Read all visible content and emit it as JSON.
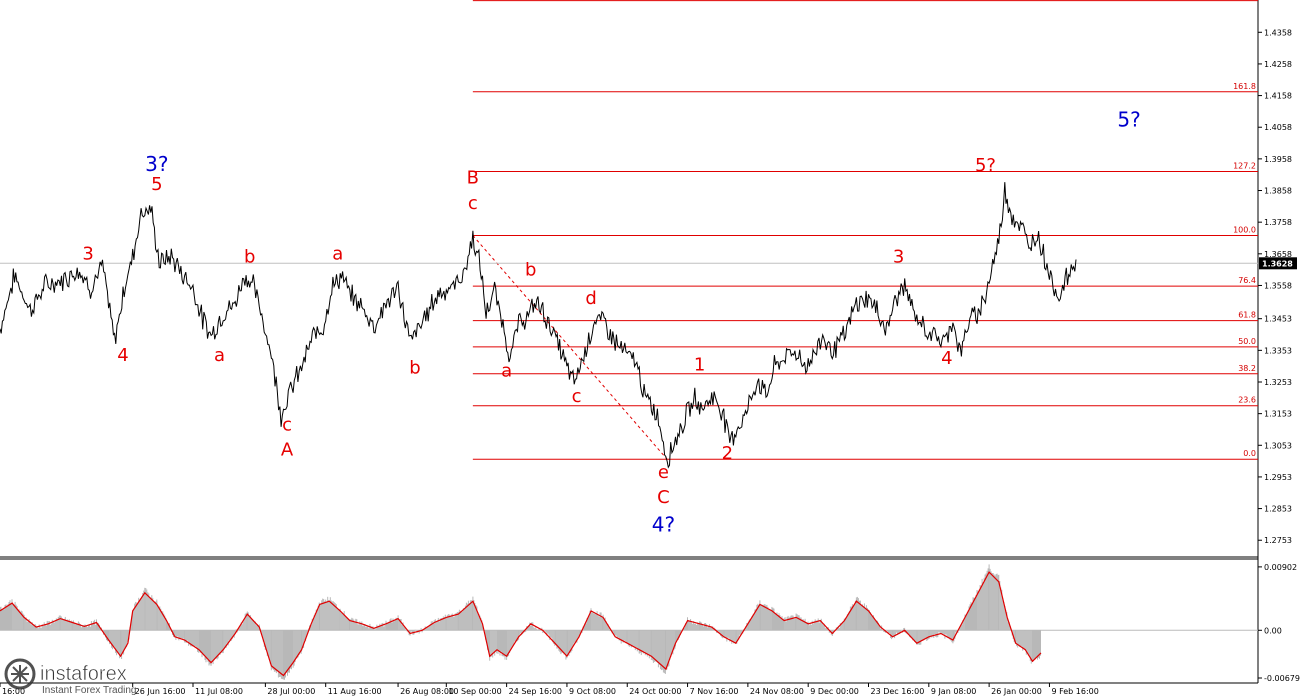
{
  "chart_data": [
    {
      "type": "line",
      "name": "price-panel",
      "symbol_last_price": "1.3628",
      "ylim": [
        1.27,
        1.446
      ],
      "y_ticks": [
        "1.4358",
        "1.4258",
        "1.4158",
        "1.4058",
        "1.3958",
        "1.3858",
        "1.3758",
        "1.3658",
        "1.3558",
        "1.3453",
        "1.3353",
        "1.3253",
        "1.3153",
        "1.3053",
        "1.2953",
        "1.2853",
        "1.2753"
      ],
      "x_labels": [
        "16:00",
        "26 Jun 16:00",
        "11 Jul 08:00",
        "28 Jul 00:00",
        "11 Aug 16:00",
        "26 Aug 08:00",
        "10 Sep 00:00",
        "24 Sep 16:00",
        "9 Oct 08:00",
        "24 Oct 00:00",
        "7 Nov 16:00",
        "24 Nov 08:00",
        "9 Dec 00:00",
        "23 Dec 16:00",
        "9 Jan 08:00",
        "26 Jan 00:00",
        "9 Feb 16:00"
      ],
      "x_index": [
        0,
        11,
        16,
        22,
        27,
        33,
        37,
        42,
        47,
        52,
        57,
        62,
        67,
        72,
        77,
        82,
        87
      ],
      "x_range": [
        0,
        96
      ],
      "price_path": [
        [
          0,
          1.342
        ],
        [
          1.2,
          1.359
        ],
        [
          2.5,
          1.348
        ],
        [
          3.8,
          1.356
        ],
        [
          5,
          1.357
        ],
        [
          6.5,
          1.361
        ],
        [
          7.5,
          1.355
        ],
        [
          8.5,
          1.362
        ],
        [
          9.5,
          1.338
        ],
        [
          10.3,
          1.355
        ],
        [
          11,
          1.365
        ],
        [
          11.7,
          1.379
        ],
        [
          12.5,
          1.38
        ],
        [
          13.2,
          1.363
        ],
        [
          14.2,
          1.365
        ],
        [
          15.2,
          1.359
        ],
        [
          16,
          1.355
        ],
        [
          16.8,
          1.345
        ],
        [
          17.5,
          1.34
        ],
        [
          18.5,
          1.347
        ],
        [
          19.5,
          1.35
        ],
        [
          20.2,
          1.359
        ],
        [
          21,
          1.356
        ],
        [
          22,
          1.342
        ],
        [
          22.6,
          1.332
        ],
        [
          23.3,
          1.315
        ],
        [
          24,
          1.322
        ],
        [
          25,
          1.33
        ],
        [
          26,
          1.34
        ],
        [
          26.8,
          1.343
        ],
        [
          27.5,
          1.355
        ],
        [
          28.3,
          1.359
        ],
        [
          29,
          1.353
        ],
        [
          30,
          1.349
        ],
        [
          31,
          1.343
        ],
        [
          32,
          1.35
        ],
        [
          33,
          1.355
        ],
        [
          34,
          1.338
        ],
        [
          35,
          1.344
        ],
        [
          35.8,
          1.35
        ],
        [
          36.5,
          1.354
        ],
        [
          37.5,
          1.355
        ],
        [
          38.5,
          1.36
        ],
        [
          39.2,
          1.371
        ],
        [
          39.8,
          1.362
        ],
        [
          40.3,
          1.347
        ],
        [
          41,
          1.354
        ],
        [
          41.6,
          1.345
        ],
        [
          42.3,
          1.333
        ],
        [
          43,
          1.344
        ],
        [
          43.8,
          1.346
        ],
        [
          44.5,
          1.351
        ],
        [
          45.5,
          1.344
        ],
        [
          46.3,
          1.337
        ],
        [
          47,
          1.33
        ],
        [
          47.6,
          1.325
        ],
        [
          48.5,
          1.335
        ],
        [
          49.2,
          1.344
        ],
        [
          50,
          1.345
        ],
        [
          51,
          1.338
        ],
        [
          52,
          1.334
        ],
        [
          52.8,
          1.331
        ],
        [
          53.5,
          1.32
        ],
        [
          54.5,
          1.315
        ],
        [
          55.3,
          1.301
        ],
        [
          56,
          1.307
        ],
        [
          56.8,
          1.314
        ],
        [
          57.6,
          1.32
        ],
        [
          58.3,
          1.317
        ],
        [
          59,
          1.321
        ],
        [
          59.8,
          1.317
        ],
        [
          60.5,
          1.307
        ],
        [
          61.2,
          1.311
        ],
        [
          62,
          1.317
        ],
        [
          62.8,
          1.326
        ],
        [
          63.5,
          1.321
        ],
        [
          64.2,
          1.33
        ],
        [
          65,
          1.333
        ],
        [
          66,
          1.335
        ],
        [
          66.8,
          1.33
        ],
        [
          67.5,
          1.334
        ],
        [
          68.2,
          1.34
        ],
        [
          69,
          1.335
        ],
        [
          70,
          1.34
        ],
        [
          71,
          1.35
        ],
        [
          72,
          1.352
        ],
        [
          72.8,
          1.347
        ],
        [
          73.5,
          1.342
        ],
        [
          74.3,
          1.352
        ],
        [
          75,
          1.356
        ],
        [
          75.8,
          1.346
        ],
        [
          76.5,
          1.343
        ],
        [
          77.3,
          1.34
        ],
        [
          78.3,
          1.338
        ],
        [
          79,
          1.345
        ],
        [
          79.6,
          1.334
        ],
        [
          80.3,
          1.344
        ],
        [
          81,
          1.347
        ],
        [
          81.7,
          1.353
        ],
        [
          82.3,
          1.362
        ],
        [
          82.8,
          1.37
        ],
        [
          83.3,
          1.386
        ],
        [
          84,
          1.377
        ],
        [
          84.7,
          1.374
        ],
        [
          85.3,
          1.368
        ],
        [
          86,
          1.372
        ],
        [
          86.6,
          1.365
        ],
        [
          87.2,
          1.357
        ],
        [
          87.8,
          1.352
        ],
        [
          88.4,
          1.358
        ],
        [
          89.2,
          1.364
        ]
      ],
      "fib_top": 1.4458,
      "fib_start_x": 39.2,
      "fib_levels": [
        {
          "label": "161.8",
          "price": 1.417
        },
        {
          "label": "127.2",
          "price": 1.3918
        },
        {
          "label": "100.0",
          "price": 1.3716
        },
        {
          "label": "76.4",
          "price": 1.3556
        },
        {
          "label": "61.8",
          "price": 1.3447
        },
        {
          "label": "50.0",
          "price": 1.3364
        },
        {
          "label": "38.2",
          "price": 1.3279
        },
        {
          "label": "23.6",
          "price": 1.3178
        },
        {
          "label": "0.0",
          "price": 1.3009
        }
      ],
      "diagonal": [
        [
          39.2,
          1.3716
        ],
        [
          55.3,
          1.3009
        ]
      ],
      "current_price_line": 1.3628,
      "wave_labels_red": [
        {
          "text": "3",
          "x": 7.3,
          "y": 1.364
        },
        {
          "text": "5",
          "x": 13.0,
          "y": 1.386
        },
        {
          "text": "4",
          "x": 10.2,
          "y": 1.332
        },
        {
          "text": "b",
          "x": 20.7,
          "y": 1.363
        },
        {
          "text": "a",
          "x": 18.2,
          "y": 1.332
        },
        {
          "text": "a",
          "x": 28.0,
          "y": 1.364
        },
        {
          "text": "c",
          "x": 23.8,
          "y": 1.31
        },
        {
          "text": "A",
          "x": 23.8,
          "y": 1.302
        },
        {
          "text": "b",
          "x": 34.4,
          "y": 1.328
        },
        {
          "text": "B",
          "x": 39.2,
          "y": 1.388
        },
        {
          "text": "c",
          "x": 39.2,
          "y": 1.38
        },
        {
          "text": "b",
          "x": 44.0,
          "y": 1.359
        },
        {
          "text": "a",
          "x": 42.0,
          "y": 1.327
        },
        {
          "text": "d",
          "x": 49.0,
          "y": 1.35
        },
        {
          "text": "c",
          "x": 47.8,
          "y": 1.319
        },
        {
          "text": "e",
          "x": 55.0,
          "y": 1.295
        },
        {
          "text": "C",
          "x": 55.0,
          "y": 1.287
        },
        {
          "text": "1",
          "x": 58.0,
          "y": 1.329
        },
        {
          "text": "2",
          "x": 60.3,
          "y": 1.301
        },
        {
          "text": "3",
          "x": 74.5,
          "y": 1.363
        },
        {
          "text": "4",
          "x": 78.5,
          "y": 1.331
        },
        {
          "text": "5?",
          "x": 81.7,
          "y": 1.392
        }
      ],
      "wave_labels_blue": [
        {
          "text": "3?",
          "x": 13.0,
          "y": 1.392
        },
        {
          "text": "4?",
          "x": 55.0,
          "y": 1.278
        },
        {
          "text": "5?",
          "x": 93.6,
          "y": 1.406
        }
      ]
    },
    {
      "type": "area",
      "name": "oscillator-panel",
      "ylim": [
        -0.0075,
        0.01
      ],
      "y_ticks": [
        "0.00902",
        "0.00",
        "-0.00679"
      ],
      "x_range": [
        0,
        96
      ],
      "series": [
        {
          "values": [
            [
              0,
              0.003
            ],
            [
              1,
              0.0042
            ],
            [
              2,
              0.002
            ],
            [
              3,
              0.0005
            ],
            [
              4,
              0.001
            ],
            [
              5,
              0.0018
            ],
            [
              6,
              0.0012
            ],
            [
              7,
              0.0006
            ],
            [
              8,
              0.0012
            ],
            [
              9,
              -0.0015
            ],
            [
              10,
              -0.004
            ],
            [
              10.6,
              -0.002
            ],
            [
              11,
              0.003
            ],
            [
              12,
              0.0058
            ],
            [
              13,
              0.004
            ],
            [
              13.8,
              0.0015
            ],
            [
              14.5,
              -0.001
            ],
            [
              15.3,
              -0.0015
            ],
            [
              16.5,
              -0.003
            ],
            [
              17.5,
              -0.005
            ],
            [
              18.5,
              -0.003
            ],
            [
              19.5,
              -0.0005
            ],
            [
              20.5,
              0.0025
            ],
            [
              21.5,
              0.0005
            ],
            [
              22.5,
              -0.0055
            ],
            [
              23.5,
              -0.007
            ],
            [
              24.3,
              -0.005
            ],
            [
              25,
              -0.003
            ],
            [
              25.8,
              0.001
            ],
            [
              26.5,
              0.004
            ],
            [
              27.3,
              0.0045
            ],
            [
              28.2,
              0.003
            ],
            [
              29,
              0.0015
            ],
            [
              30,
              0.001
            ],
            [
              31,
              0.0003
            ],
            [
              32,
              0.001
            ],
            [
              33,
              0.0018
            ],
            [
              34,
              -0.0005
            ],
            [
              35,
              0.0
            ],
            [
              36,
              0.0012
            ],
            [
              37,
              0.002
            ],
            [
              38,
              0.0025
            ],
            [
              39.2,
              0.0045
            ],
            [
              40,
              0.001
            ],
            [
              40.6,
              -0.004
            ],
            [
              41.2,
              -0.003
            ],
            [
              42,
              -0.004
            ],
            [
              43,
              -0.001
            ],
            [
              44,
              0.001
            ],
            [
              45,
              0.0
            ],
            [
              46,
              -0.002
            ],
            [
              47,
              -0.004
            ],
            [
              48,
              -0.001
            ],
            [
              49,
              0.003
            ],
            [
              50,
              0.002
            ],
            [
              51,
              -0.001
            ],
            [
              52,
              -0.002
            ],
            [
              53,
              -0.003
            ],
            [
              54,
              -0.004
            ],
            [
              55.2,
              -0.006
            ],
            [
              56,
              -0.002
            ],
            [
              57,
              0.0015
            ],
            [
              58,
              0.001
            ],
            [
              59,
              0.0005
            ],
            [
              60,
              -0.001
            ],
            [
              61,
              -0.002
            ],
            [
              62,
              0.001
            ],
            [
              63,
              0.004
            ],
            [
              64,
              0.003
            ],
            [
              65,
              0.0015
            ],
            [
              66,
              0.002
            ],
            [
              67,
              0.001
            ],
            [
              68,
              0.0015
            ],
            [
              69,
              -0.0005
            ],
            [
              70,
              0.0015
            ],
            [
              71,
              0.0045
            ],
            [
              72,
              0.003
            ],
            [
              73,
              0.0005
            ],
            [
              74,
              -0.001
            ],
            [
              75,
              0.0
            ],
            [
              76,
              -0.002
            ],
            [
              77,
              -0.001
            ],
            [
              78,
              -0.0005
            ],
            [
              79,
              -0.0015
            ],
            [
              80,
              0.002
            ],
            [
              81,
              0.0055
            ],
            [
              82,
              0.009
            ],
            [
              82.8,
              0.0075
            ],
            [
              83.5,
              0.002
            ],
            [
              84.2,
              -0.002
            ],
            [
              85,
              -0.003
            ],
            [
              85.6,
              -0.0048
            ],
            [
              86.3,
              -0.0035
            ]
          ]
        }
      ]
    }
  ],
  "logo": {
    "brand": "instaforex",
    "tagline": "Instant Forex Trading"
  },
  "colors": {
    "fib": "#e00000",
    "price": "#000000",
    "oscillator_fill": "#b8b8b8",
    "oscillator_line": "#e00000",
    "wave_red": "#e60000",
    "wave_blue": "#0000cc"
  }
}
